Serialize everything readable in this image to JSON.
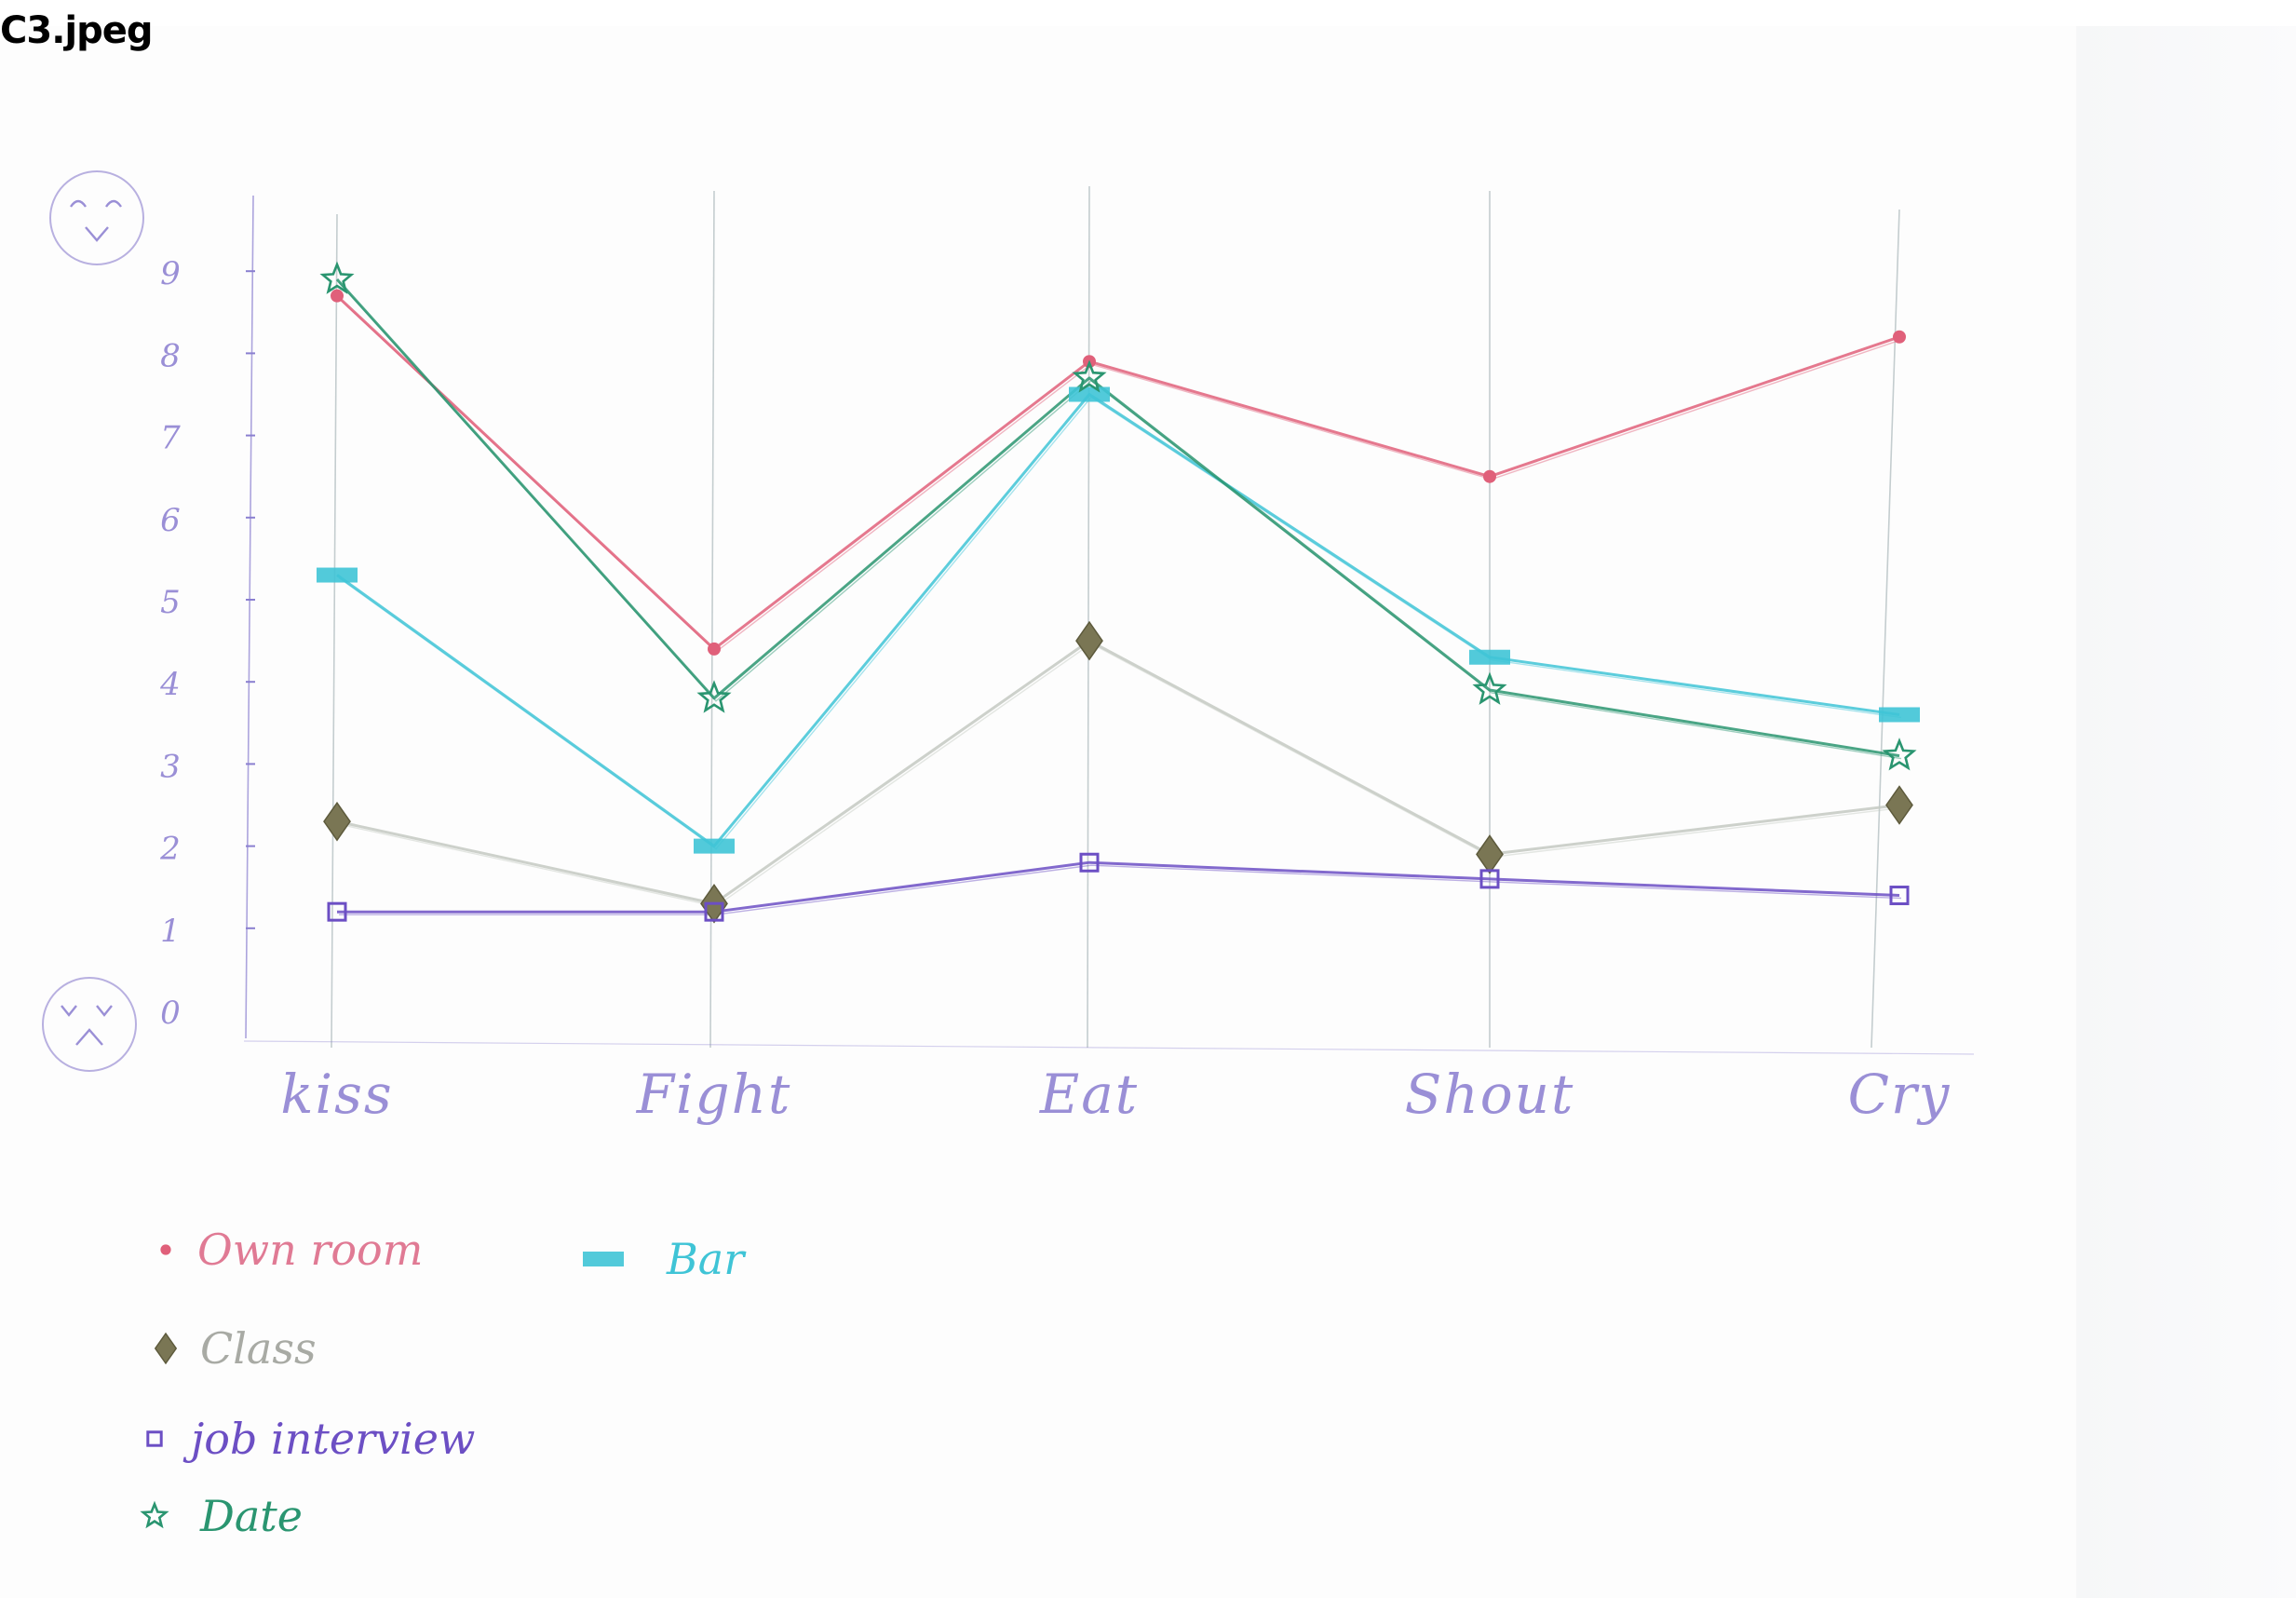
{
  "file_label": "C3.jpeg",
  "chart_data": {
    "type": "line",
    "categories": [
      "kiss",
      "Fight",
      "Eat",
      "Shout",
      "Cry"
    ],
    "y_ticks": [
      "0",
      "1",
      "2",
      "3",
      "4",
      "5",
      "6",
      "7",
      "8",
      "9"
    ],
    "ylim": [
      0,
      9.6
    ],
    "grid": "vertical lines at each category",
    "legend_position": "bottom-left",
    "y_axis_icons": {
      "top": "happy-face-icon",
      "bottom": "sad-face-icon"
    },
    "series": [
      {
        "name": "Own room",
        "marker": "circle",
        "color": "#e0607a",
        "values": [
          8.7,
          4.4,
          7.9,
          6.5,
          8.2
        ]
      },
      {
        "name": "Bar",
        "marker": "rect",
        "color": "#3fc4d6",
        "values": [
          5.3,
          2.0,
          7.5,
          4.3,
          3.6
        ]
      },
      {
        "name": "Class",
        "marker": "diamond",
        "color": "#7a7654",
        "line_color": "#c4c9c2",
        "values": [
          2.3,
          1.3,
          4.5,
          1.9,
          2.5
        ]
      },
      {
        "name": "job interview",
        "marker": "square",
        "color": "#6c4fc4",
        "values": [
          1.2,
          1.2,
          1.8,
          1.6,
          1.4
        ]
      },
      {
        "name": "Date",
        "marker": "star",
        "color": "#2a9570",
        "values": [
          8.9,
          3.8,
          7.7,
          3.9,
          3.1
        ]
      }
    ]
  }
}
